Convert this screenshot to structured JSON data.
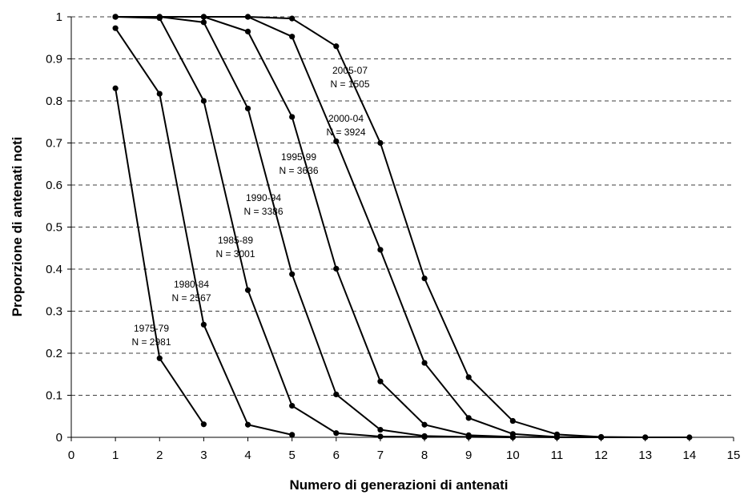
{
  "chart_data": {
    "type": "line",
    "title": "",
    "xlabel": "Numero di generazioni di antenati",
    "ylabel": "Proporzione di antenati noti",
    "xlim": [
      0,
      15
    ],
    "ylim": [
      0,
      1
    ],
    "x_ticks": [
      "0",
      "1",
      "2",
      "3",
      "4",
      "5",
      "6",
      "7",
      "8",
      "9",
      "10",
      "11",
      "12",
      "13",
      "14",
      "15"
    ],
    "y_ticks": [
      "0",
      "0.1",
      "0.2",
      "0.3",
      "0.4",
      "0.5",
      "0.6",
      "0.7",
      "0.8",
      "0.9",
      "1"
    ],
    "grid": "horizontal dashed",
    "series": [
      {
        "name": "1975-79",
        "n_label": "N = 2981",
        "x": [
          1,
          2,
          3
        ],
        "y": [
          0.83,
          0.188,
          0.031
        ]
      },
      {
        "name": "1980-84",
        "n_label": "N = 2567",
        "x": [
          1,
          2,
          3,
          4,
          5
        ],
        "y": [
          0.973,
          0.817,
          0.268,
          0.03,
          0.006
        ]
      },
      {
        "name": "1985-89",
        "n_label": "N = 3001",
        "x": [
          1,
          2,
          3,
          4,
          5,
          6,
          7,
          8
        ],
        "y": [
          1.0,
          0.997,
          0.8,
          0.35,
          0.075,
          0.01,
          0.002,
          0.001
        ]
      },
      {
        "name": "1990-94",
        "n_label": "N = 3386",
        "x": [
          1,
          2,
          3,
          4,
          5,
          6,
          7,
          8,
          9,
          10
        ],
        "y": [
          1.0,
          1.0,
          0.987,
          0.782,
          0.388,
          0.102,
          0.018,
          0.003,
          0.001,
          0.0
        ]
      },
      {
        "name": "1995-99",
        "n_label": "N = 3636",
        "x": [
          1,
          2,
          3,
          4,
          5,
          6,
          7,
          8,
          9,
          10,
          11,
          12
        ],
        "y": [
          1.0,
          1.0,
          1.0,
          0.965,
          0.762,
          0.401,
          0.133,
          0.03,
          0.005,
          0.001,
          0.0,
          0.0
        ]
      },
      {
        "name": "2000-04",
        "n_label": "N = 3924",
        "x": [
          1,
          2,
          3,
          4,
          5,
          6,
          7,
          8,
          9,
          10,
          11,
          12,
          13
        ],
        "y": [
          1.0,
          1.0,
          1.0,
          1.0,
          0.953,
          0.704,
          0.446,
          0.177,
          0.046,
          0.008,
          0.001,
          0.0,
          0.0
        ]
      },
      {
        "name": "2005-07",
        "n_label": "N = 1505",
        "x": [
          1,
          2,
          3,
          4,
          5,
          6,
          7,
          8,
          9,
          10,
          11,
          12,
          13,
          14
        ],
        "y": [
          1.0,
          1.0,
          1.0,
          1.0,
          0.996,
          0.93,
          0.7,
          0.378,
          0.143,
          0.039,
          0.007,
          0.001,
          0.0,
          0.0
        ]
      }
    ]
  }
}
